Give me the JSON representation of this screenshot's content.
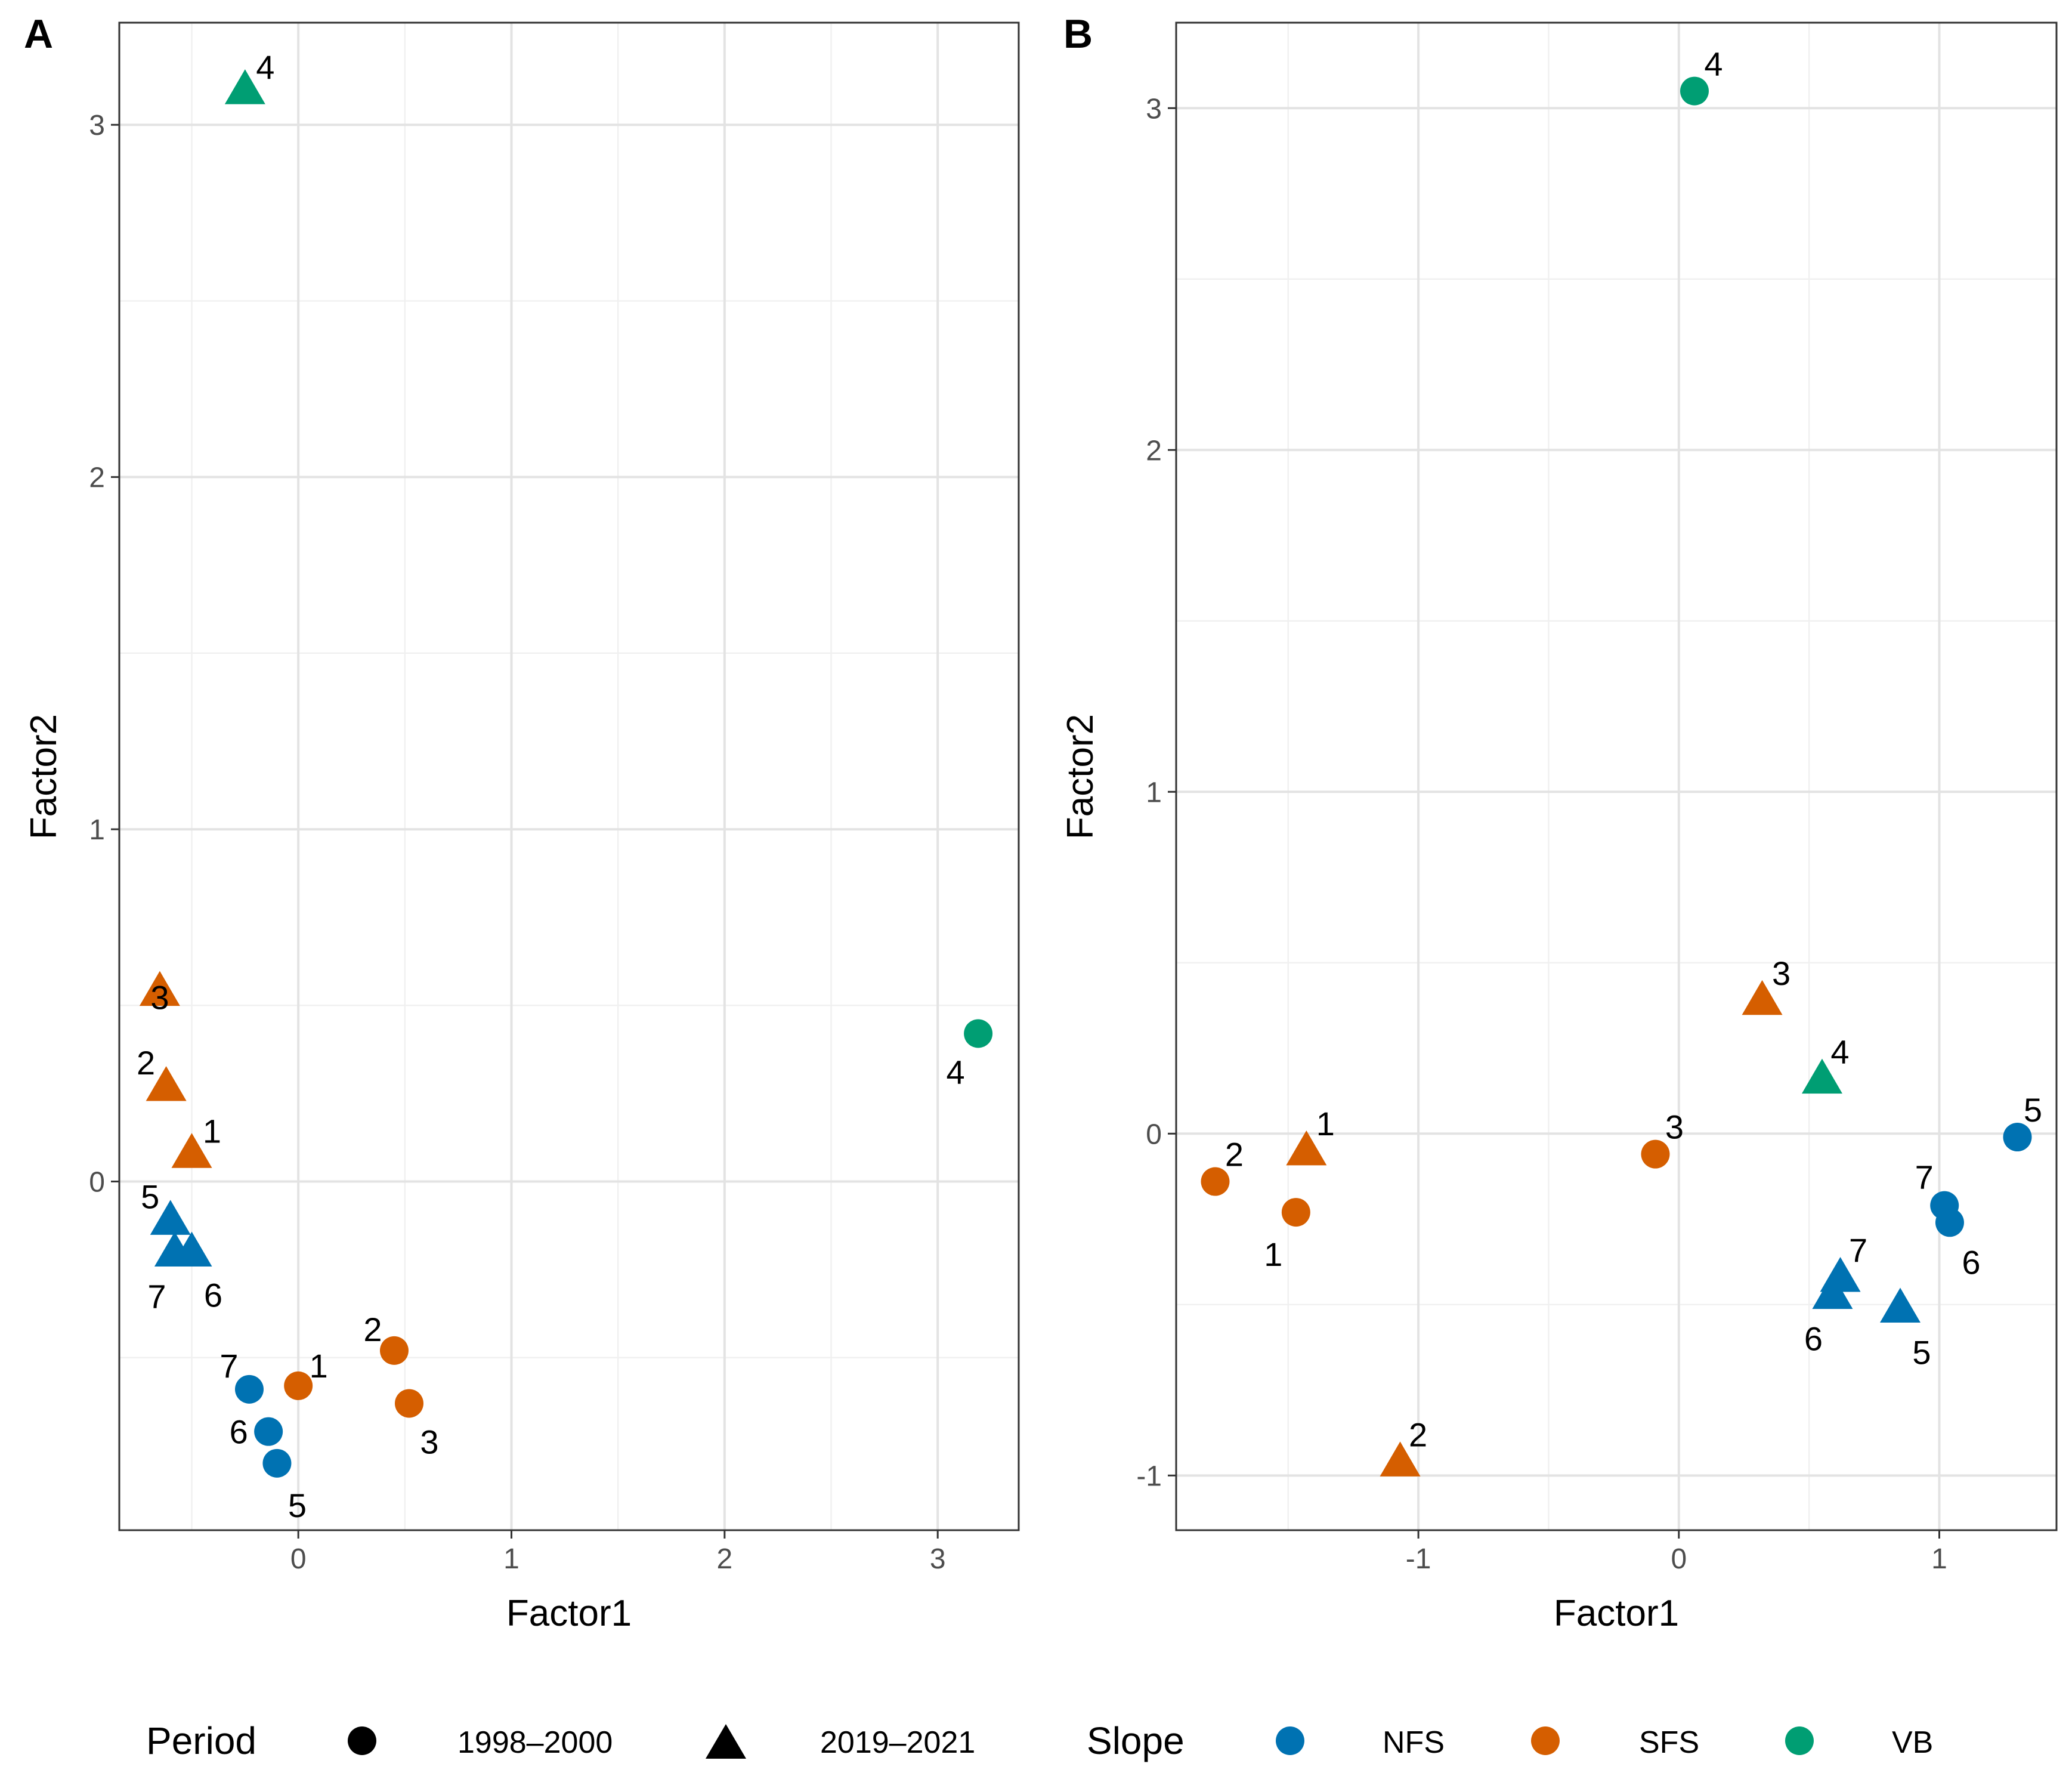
{
  "chart_data": [
    {
      "panel": "A",
      "type": "scatter",
      "xlabel": "Factor1",
      "ylabel": "Factor2",
      "xlim": [
        -0.84,
        3.38
      ],
      "ylim": [
        -0.99,
        3.29
      ],
      "x_ticks": [
        0,
        1,
        2,
        3
      ],
      "y_ticks": [
        0,
        1,
        2,
        3
      ],
      "points": [
        {
          "label": "1",
          "x": 0.0,
          "y": -0.58,
          "slope": "SFS",
          "period": "1998–2000"
        },
        {
          "label": "2",
          "x": 0.45,
          "y": -0.48,
          "slope": "SFS",
          "period": "1998–2000"
        },
        {
          "label": "3",
          "x": 0.52,
          "y": -0.63,
          "slope": "SFS",
          "period": "1998–2000"
        },
        {
          "label": "4",
          "x": 3.19,
          "y": 0.42,
          "slope": "VB",
          "period": "1998–2000"
        },
        {
          "label": "5",
          "x": -0.1,
          "y": -0.8,
          "slope": "NFS",
          "period": "1998–2000"
        },
        {
          "label": "6",
          "x": -0.14,
          "y": -0.71,
          "slope": "NFS",
          "period": "1998–2000"
        },
        {
          "label": "7",
          "x": -0.23,
          "y": -0.59,
          "slope": "NFS",
          "period": "1998–2000"
        },
        {
          "label": "1",
          "x": -0.5,
          "y": 0.08,
          "slope": "SFS",
          "period": "2019–2021"
        },
        {
          "label": "2",
          "x": -0.62,
          "y": 0.27,
          "slope": "SFS",
          "period": "2019–2021"
        },
        {
          "label": "3",
          "x": -0.65,
          "y": 0.54,
          "slope": "SFS",
          "period": "2019–2021"
        },
        {
          "label": "4",
          "x": -0.25,
          "y": 3.1,
          "slope": "VB",
          "period": "2019–2021"
        },
        {
          "label": "5",
          "x": -0.6,
          "y": -0.11,
          "slope": "NFS",
          "period": "2019–2021"
        },
        {
          "label": "6",
          "x": -0.5,
          "y": -0.2,
          "slope": "NFS",
          "period": "2019–2021"
        },
        {
          "label": "7",
          "x": -0.58,
          "y": -0.2,
          "slope": "NFS",
          "period": "2019–2021"
        }
      ]
    },
    {
      "panel": "B",
      "type": "scatter",
      "xlabel": "Factor1",
      "ylabel": "Factor2",
      "xlim": [
        -1.93,
        1.45
      ],
      "ylim": [
        -1.16,
        3.25
      ],
      "x_ticks": [
        -1,
        0,
        1
      ],
      "y_ticks": [
        -1,
        0,
        1,
        2,
        3
      ],
      "points": [
        {
          "label": "1",
          "x": -1.47,
          "y": -0.23,
          "slope": "SFS",
          "period": "1998–2000"
        },
        {
          "label": "2",
          "x": -1.78,
          "y": -0.14,
          "slope": "SFS",
          "period": "1998–2000"
        },
        {
          "label": "3",
          "x": -0.09,
          "y": -0.06,
          "slope": "SFS",
          "period": "1998–2000"
        },
        {
          "label": "4",
          "x": 0.06,
          "y": 3.05,
          "slope": "VB",
          "period": "1998–2000"
        },
        {
          "label": "5",
          "x": 1.3,
          "y": -0.01,
          "slope": "NFS",
          "period": "1998–2000"
        },
        {
          "label": "6",
          "x": 1.04,
          "y": -0.26,
          "slope": "NFS",
          "period": "1998–2000"
        },
        {
          "label": "7",
          "x": 1.02,
          "y": -0.21,
          "slope": "NFS",
          "period": "1998–2000"
        },
        {
          "label": "1",
          "x": -1.43,
          "y": -0.05,
          "slope": "SFS",
          "period": "2019–2021"
        },
        {
          "label": "2",
          "x": -1.07,
          "y": -0.96,
          "slope": "SFS",
          "period": "2019–2021"
        },
        {
          "label": "3",
          "x": 0.32,
          "y": 0.39,
          "slope": "SFS",
          "period": "2019–2021"
        },
        {
          "label": "4",
          "x": 0.55,
          "y": 0.16,
          "slope": "VB",
          "period": "2019–2021"
        },
        {
          "label": "5",
          "x": 0.85,
          "y": -0.51,
          "slope": "NFS",
          "period": "2019–2021"
        },
        {
          "label": "6",
          "x": 0.59,
          "y": -0.47,
          "slope": "NFS",
          "period": "2019–2021"
        },
        {
          "label": "7",
          "x": 0.62,
          "y": -0.42,
          "slope": "NFS",
          "period": "2019–2021"
        }
      ]
    }
  ],
  "legend": {
    "period_title": "Period",
    "period_items": [
      {
        "label": "1998–2000",
        "shape": "circle"
      },
      {
        "label": "2019–2021",
        "shape": "triangle"
      }
    ],
    "slope_title": "Slope",
    "slope_items": [
      {
        "label": "NFS",
        "color": "#0072B2"
      },
      {
        "label": "SFS",
        "color": "#D55E00"
      },
      {
        "label": "VB",
        "color": "#009E73"
      }
    ]
  },
  "colors": {
    "NFS": "#0072B2",
    "SFS": "#D55E00",
    "VB": "#009E73"
  }
}
